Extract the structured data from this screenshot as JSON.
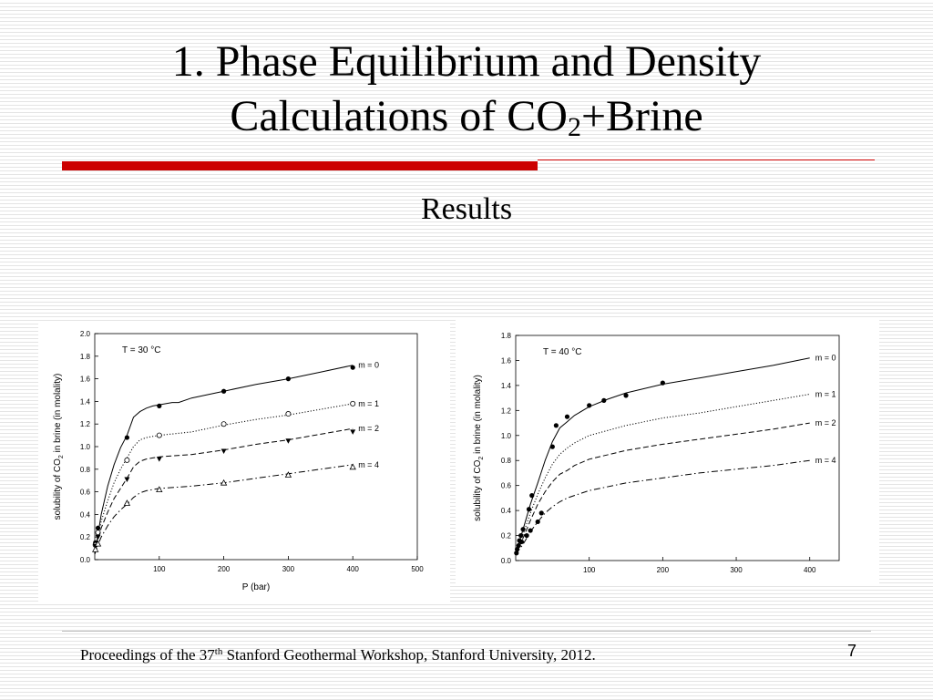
{
  "slide": {
    "title_line1": "1. Phase Equilibrium and Density",
    "title_line2_pre": "Calculations of CO",
    "title_line2_sub": "2",
    "title_line2_post": "+Brine",
    "subtitle": "Results",
    "footer_pre": "Proceedings of the 37",
    "footer_sup": "th",
    "footer_post": " Stanford Geothermal  Workshop, Stanford University, 2012.",
    "page_number": "7"
  },
  "colors": {
    "accent_red": "#cc0000",
    "ink": "#000000"
  },
  "chart_data": [
    {
      "type": "line",
      "annotation": "T = 30 °C",
      "xlabel": "P (bar)",
      "ylabel_pre": "solubility of CO",
      "ylabel_sub": "2",
      "ylabel_post": " in brine (in molality)",
      "xlim": [
        0,
        500
      ],
      "ylim": [
        0,
        2.0
      ],
      "xticks": [
        100,
        200,
        300,
        400,
        500
      ],
      "yticks": [
        0.0,
        0.2,
        0.4,
        0.6,
        0.8,
        1.0,
        1.2,
        1.4,
        1.6,
        1.8,
        2.0
      ],
      "grid": false,
      "series": [
        {
          "name": "m = 0",
          "line": "solid",
          "marker": "filled-circle",
          "curve": [
            [
              0,
              0.05
            ],
            [
              5,
              0.22
            ],
            [
              10,
              0.4
            ],
            [
              20,
              0.65
            ],
            [
              30,
              0.84
            ],
            [
              40,
              0.99
            ],
            [
              50,
              1.1
            ],
            [
              60,
              1.26
            ],
            [
              70,
              1.31
            ],
            [
              80,
              1.34
            ],
            [
              90,
              1.36
            ],
            [
              100,
              1.37
            ],
            [
              110,
              1.38
            ],
            [
              120,
              1.39
            ],
            [
              130,
              1.39
            ],
            [
              150,
              1.43
            ],
            [
              200,
              1.49
            ],
            [
              250,
              1.55
            ],
            [
              300,
              1.6
            ],
            [
              350,
              1.66
            ],
            [
              400,
              1.72
            ]
          ],
          "points": [
            [
              1,
              0.15
            ],
            [
              5,
              0.28
            ],
            [
              50,
              1.08
            ],
            [
              100,
              1.36
            ],
            [
              200,
              1.49
            ],
            [
              300,
              1.6
            ],
            [
              400,
              1.7
            ]
          ]
        },
        {
          "name": "m = 1",
          "line": "dotted",
          "marker": "open-circle",
          "curve": [
            [
              0,
              0.05
            ],
            [
              5,
              0.2
            ],
            [
              10,
              0.34
            ],
            [
              20,
              0.52
            ],
            [
              30,
              0.68
            ],
            [
              40,
              0.8
            ],
            [
              50,
              0.9
            ],
            [
              60,
              1.0
            ],
            [
              70,
              1.06
            ],
            [
              80,
              1.08
            ],
            [
              90,
              1.09
            ],
            [
              100,
              1.1
            ],
            [
              150,
              1.13
            ],
            [
              200,
              1.19
            ],
            [
              250,
              1.24
            ],
            [
              300,
              1.28
            ],
            [
              350,
              1.33
            ],
            [
              400,
              1.38
            ]
          ],
          "points": [
            [
              1,
              0.13
            ],
            [
              5,
              0.24
            ],
            [
              50,
              0.88
            ],
            [
              100,
              1.1
            ],
            [
              200,
              1.2
            ],
            [
              300,
              1.29
            ],
            [
              400,
              1.38
            ]
          ]
        },
        {
          "name": "m = 2",
          "line": "dash",
          "marker": "filled-triangle-down",
          "curve": [
            [
              0,
              0.05
            ],
            [
              5,
              0.17
            ],
            [
              10,
              0.28
            ],
            [
              20,
              0.42
            ],
            [
              30,
              0.54
            ],
            [
              40,
              0.63
            ],
            [
              50,
              0.72
            ],
            [
              60,
              0.82
            ],
            [
              70,
              0.87
            ],
            [
              80,
              0.89
            ],
            [
              90,
              0.9
            ],
            [
              100,
              0.91
            ],
            [
              150,
              0.93
            ],
            [
              200,
              0.97
            ],
            [
              250,
              1.02
            ],
            [
              300,
              1.06
            ],
            [
              350,
              1.11
            ],
            [
              400,
              1.16
            ]
          ],
          "points": [
            [
              1,
              0.12
            ],
            [
              5,
              0.2
            ],
            [
              50,
              0.71
            ],
            [
              100,
              0.89
            ],
            [
              200,
              0.96
            ],
            [
              300,
              1.05
            ],
            [
              400,
              1.13
            ]
          ]
        },
        {
          "name": "m = 4",
          "line": "dashdot",
          "marker": "open-triangle-up",
          "curve": [
            [
              0,
              0.05
            ],
            [
              5,
              0.13
            ],
            [
              10,
              0.2
            ],
            [
              20,
              0.3
            ],
            [
              30,
              0.38
            ],
            [
              40,
              0.44
            ],
            [
              50,
              0.49
            ],
            [
              60,
              0.55
            ],
            [
              70,
              0.59
            ],
            [
              80,
              0.61
            ],
            [
              90,
              0.62
            ],
            [
              100,
              0.63
            ],
            [
              150,
              0.65
            ],
            [
              200,
              0.68
            ],
            [
              250,
              0.72
            ],
            [
              300,
              0.76
            ],
            [
              350,
              0.8
            ],
            [
              400,
              0.84
            ]
          ],
          "points": [
            [
              1,
              0.09
            ],
            [
              5,
              0.14
            ],
            [
              50,
              0.5
            ],
            [
              100,
              0.62
            ],
            [
              200,
              0.68
            ],
            [
              300,
              0.75
            ],
            [
              400,
              0.82
            ]
          ]
        }
      ]
    },
    {
      "type": "line",
      "annotation": "T = 40 °C",
      "xlabel": "",
      "ylabel_pre": "solubility of CO",
      "ylabel_sub": "2",
      "ylabel_post": " in brine (in molality)",
      "xlim": [
        0,
        440
      ],
      "ylim": [
        0,
        1.8
      ],
      "xticks": [
        100,
        200,
        300,
        400
      ],
      "yticks": [
        0.0,
        0.2,
        0.4,
        0.6,
        0.8,
        1.0,
        1.2,
        1.4,
        1.6,
        1.8
      ],
      "grid": false,
      "series": [
        {
          "name": "m = 0",
          "line": "solid",
          "marker": "filled-circle",
          "curve": [
            [
              0,
              0.05
            ],
            [
              10,
              0.25
            ],
            [
              20,
              0.45
            ],
            [
              30,
              0.62
            ],
            [
              40,
              0.8
            ],
            [
              50,
              0.95
            ],
            [
              60,
              1.06
            ],
            [
              70,
              1.11
            ],
            [
              80,
              1.16
            ],
            [
              100,
              1.23
            ],
            [
              125,
              1.29
            ],
            [
              150,
              1.34
            ],
            [
              200,
              1.41
            ],
            [
              250,
              1.46
            ],
            [
              300,
              1.51
            ],
            [
              350,
              1.56
            ],
            [
              400,
              1.62
            ]
          ],
          "points": [
            [
              1,
              0.06
            ],
            [
              2,
              0.09
            ],
            [
              4,
              0.12
            ],
            [
              5,
              0.16
            ],
            [
              7,
              0.2
            ],
            [
              8,
              0.15
            ],
            [
              10,
              0.25
            ],
            [
              15,
              0.2
            ],
            [
              18,
              0.41
            ],
            [
              20,
              0.24
            ],
            [
              22,
              0.52
            ],
            [
              30,
              0.31
            ],
            [
              35,
              0.38
            ],
            [
              50,
              0.91
            ],
            [
              55,
              1.08
            ],
            [
              70,
              1.15
            ],
            [
              100,
              1.24
            ],
            [
              120,
              1.28
            ],
            [
              150,
              1.32
            ],
            [
              200,
              1.42
            ]
          ]
        },
        {
          "name": "m = 1",
          "line": "dotted",
          "marker": "",
          "curve": [
            [
              0,
              0.05
            ],
            [
              10,
              0.21
            ],
            [
              20,
              0.38
            ],
            [
              30,
              0.53
            ],
            [
              40,
              0.66
            ],
            [
              50,
              0.77
            ],
            [
              60,
              0.85
            ],
            [
              70,
              0.9
            ],
            [
              80,
              0.94
            ],
            [
              100,
              1.0
            ],
            [
              150,
              1.08
            ],
            [
              200,
              1.14
            ],
            [
              250,
              1.18
            ],
            [
              300,
              1.23
            ],
            [
              350,
              1.28
            ],
            [
              400,
              1.33
            ]
          ],
          "points": []
        },
        {
          "name": "m = 2",
          "line": "dash",
          "marker": "",
          "curve": [
            [
              0,
              0.05
            ],
            [
              10,
              0.18
            ],
            [
              20,
              0.32
            ],
            [
              30,
              0.45
            ],
            [
              40,
              0.55
            ],
            [
              50,
              0.63
            ],
            [
              60,
              0.69
            ],
            [
              70,
              0.72
            ],
            [
              80,
              0.76
            ],
            [
              100,
              0.81
            ],
            [
              150,
              0.88
            ],
            [
              200,
              0.93
            ],
            [
              250,
              0.97
            ],
            [
              300,
              1.01
            ],
            [
              350,
              1.05
            ],
            [
              400,
              1.1
            ]
          ],
          "points": []
        },
        {
          "name": "m = 4",
          "line": "dashdot",
          "marker": "",
          "curve": [
            [
              0,
              0.05
            ],
            [
              10,
              0.13
            ],
            [
              20,
              0.23
            ],
            [
              30,
              0.31
            ],
            [
              40,
              0.38
            ],
            [
              50,
              0.43
            ],
            [
              60,
              0.47
            ],
            [
              70,
              0.5
            ],
            [
              80,
              0.52
            ],
            [
              100,
              0.56
            ],
            [
              150,
              0.62
            ],
            [
              200,
              0.66
            ],
            [
              250,
              0.7
            ],
            [
              300,
              0.73
            ],
            [
              350,
              0.76
            ],
            [
              400,
              0.8
            ]
          ],
          "points": []
        }
      ]
    }
  ]
}
